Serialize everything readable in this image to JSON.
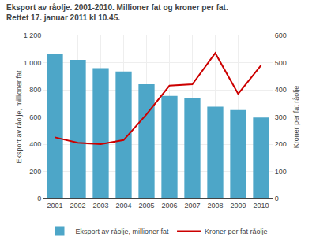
{
  "chart_data": {
    "type": "bar",
    "title": "Eksport av råolje. 2001-2010. Millioner fat og kroner per fat.",
    "subtitle": "Rettet 17. januar 2011 kl 10.45.",
    "x": [
      2001,
      2002,
      2003,
      2004,
      2005,
      2006,
      2007,
      2008,
      2009,
      2010
    ],
    "xlim": [
      2000.5,
      2010.5
    ],
    "xticks": [
      2001,
      2002,
      2003,
      2004,
      2005,
      2006,
      2007,
      2008,
      2009,
      2010
    ],
    "ylabel": "Eksport av råolje, millioner fat",
    "y2label": "Kroner per fat råolje",
    "ylim": [
      0,
      1200
    ],
    "yticks": [
      0,
      200,
      400,
      600,
      800,
      {
        "value": 1000,
        "label": "1 000"
      },
      {
        "value": 1200,
        "label": "1 200"
      }
    ],
    "y2lim": [
      0,
      600
    ],
    "y2ticks": [
      0,
      100,
      200,
      300,
      400,
      500,
      600
    ],
    "grid": true,
    "legend": "bottom",
    "series": [
      {
        "name": "Eksport av råolje, millioner fat",
        "type": "bar",
        "color": "#4da6c8",
        "values": [
          1065,
          1020,
          960,
          935,
          840,
          755,
          740,
          675,
          650,
          595
        ]
      },
      {
        "name": "Kroner per fat råolje",
        "type": "line",
        "color": "#cc0000",
        "axis": "y2",
        "values": [
          225,
          205,
          200,
          215,
          310,
          415,
          420,
          535,
          385,
          490
        ]
      }
    ]
  }
}
